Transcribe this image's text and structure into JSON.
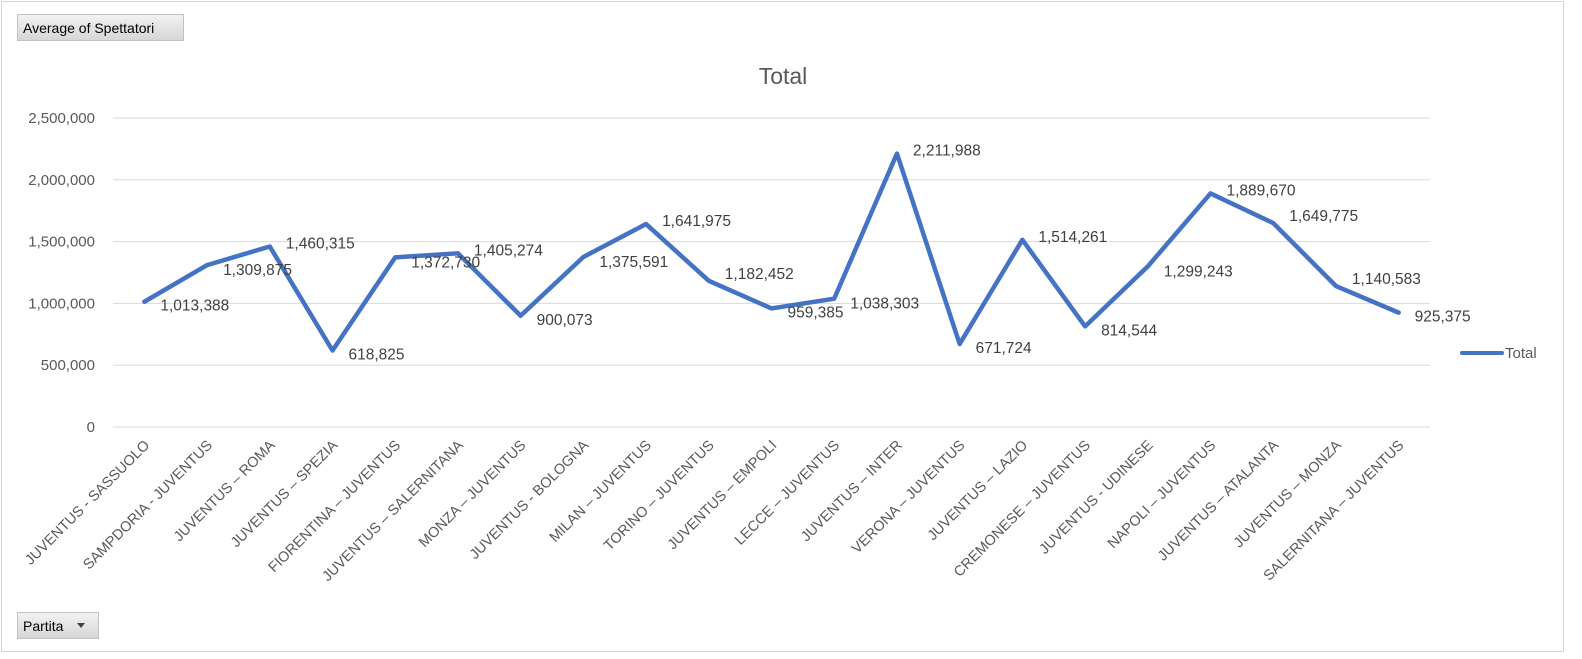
{
  "pivot": {
    "values_field": "Average of Spettatori",
    "axis_field": "Partita",
    "axis_icon": "dropdown-arrow-icon"
  },
  "colors": {
    "line": "#4472c4",
    "grid": "#d9d9d9"
  },
  "chart_data": {
    "type": "line",
    "title": "Total",
    "xlabel": "",
    "ylabel": "",
    "ylim": [
      0,
      2500000
    ],
    "yticks": [
      "0",
      "500,000",
      "1,000,000",
      "1,500,000",
      "2,000,000",
      "2,500,000"
    ],
    "legend": "right",
    "grid": true,
    "categories": [
      "JUVENTUS - SASSUOLO",
      "SAMPDORIA - JUVENTUS",
      "JUVENTUS – ROMA",
      "JUVENTUS – SPEZIA",
      "FIORENTINA – JUVENTUS",
      "JUVENTUS – SALERNITANA",
      "MONZA –  JUVENTUS",
      "JUVENTUS - BOLOGNA",
      "MILAN – JUVENTUS",
      "TORINO – JUVENTUS",
      "JUVENTUS – EMPOLI",
      "LECCE – JUVENTUS",
      "JUVENTUS – INTER",
      "VERONA – JUVENTUS",
      "JUVENTUS – LAZIO",
      "CREMONESE – JUVENTUS",
      "JUVENTUS - UDINESE",
      "NAPOLI – JUVENTUS",
      "JUVENTUS – ATALANTA",
      "JUVENTUS – MONZA",
      "SALERNITANA – JUVENTUS"
    ],
    "series": [
      {
        "name": "Total",
        "values": [
          1013388,
          1309875,
          1460315,
          618825,
          1372730,
          1405274,
          900073,
          1375591,
          1641975,
          1182452,
          959385,
          1038303,
          2211988,
          671724,
          1514261,
          814544,
          1299243,
          1889670,
          1649775,
          1140583,
          925375
        ],
        "labels": [
          "1,013,388",
          "1,309,875",
          "1,460,315",
          "618,825",
          "1,372,730",
          "1,405,274",
          "900,073",
          "1,375,591",
          "1,641,975",
          "1,182,452",
          "959,385",
          "1,038,303",
          "2,211,988",
          "671,724",
          "1,514,261",
          "814,544",
          "1,299,243",
          "1,889,670",
          "1,649,775",
          "1,140,583",
          "925,375"
        ]
      }
    ]
  }
}
